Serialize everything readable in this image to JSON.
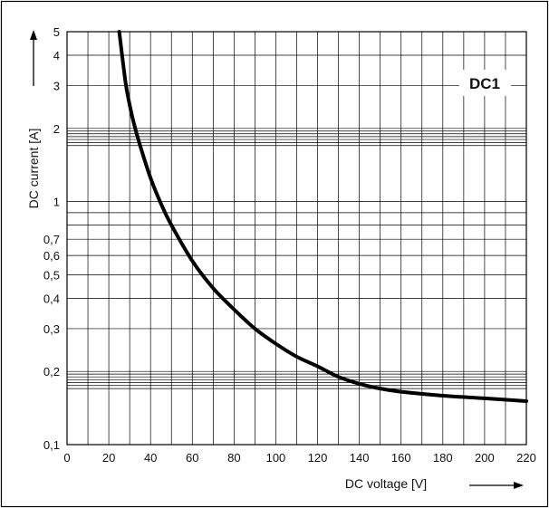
{
  "chart_data": {
    "type": "line",
    "title": "",
    "xlabel": "DC voltage [V]",
    "ylabel": "DC current [A]",
    "x_scale": "linear",
    "y_scale": "log",
    "xlim": [
      0,
      220
    ],
    "ylim": [
      0.1,
      5
    ],
    "x_ticks": [
      0,
      20,
      40,
      60,
      80,
      100,
      120,
      140,
      160,
      180,
      200,
      220
    ],
    "x_tick_labels": [
      "0",
      "20",
      "40",
      "60",
      "80",
      "100",
      "120",
      "140",
      "160",
      "180",
      "200",
      "220"
    ],
    "y_ticks": [
      0.1,
      0.2,
      0.3,
      0.4,
      0.5,
      0.6,
      0.7,
      1,
      2,
      3,
      4,
      5
    ],
    "y_tick_labels": [
      "0,1",
      "0,2",
      "0,3",
      "0,4",
      "0,5",
      "0,6",
      "0,7",
      "1",
      "2",
      "3",
      "4",
      "5"
    ],
    "grid": true,
    "legend_position": "top-right",
    "series": [
      {
        "name": "DC1",
        "color": "#000000",
        "x": [
          25,
          28,
          30,
          32,
          35,
          40,
          45,
          50,
          60,
          70,
          80,
          90,
          100,
          110,
          120,
          130,
          140,
          150,
          160,
          180,
          200,
          220
        ],
        "y": [
          5.0,
          3.1,
          2.5,
          2.1,
          1.7,
          1.25,
          0.98,
          0.8,
          0.57,
          0.44,
          0.36,
          0.3,
          0.26,
          0.23,
          0.21,
          0.19,
          0.178,
          0.17,
          0.165,
          0.159,
          0.155,
          0.151
        ]
      }
    ]
  }
}
